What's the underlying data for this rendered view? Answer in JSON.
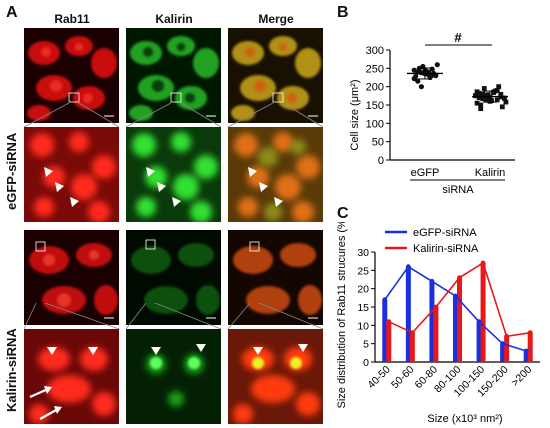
{
  "panel_a": {
    "letter": "A",
    "columns": [
      "Rab11",
      "Kalirin",
      "Merge"
    ],
    "rows": [
      "eGFP-siRNA",
      "Kalirin-siRNA"
    ],
    "colors": {
      "red": "#e01010",
      "green": "#20c020",
      "merge": "#c0a020"
    }
  },
  "panel_b": {
    "letter": "B",
    "significance": "#"
  },
  "panel_c": {
    "letter": "C"
  },
  "chart_data": [
    {
      "type": "scatter",
      "ylabel": "Cell size (μm²)",
      "ylim": [
        0,
        300
      ],
      "yticks": [
        0,
        50,
        100,
        150,
        200,
        250,
        300
      ],
      "categories": [
        "eGFP",
        "Kalirin"
      ],
      "group_label": "siRNA",
      "series": [
        {
          "values": [
            245,
            240,
            238,
            235,
            232,
            248,
            230,
            228,
            250,
            255,
            242,
            225,
            236,
            260,
            222,
            215,
            200,
            244,
            239,
            231
          ]
        },
        {
          "values": [
            175,
            170,
            180,
            165,
            160,
            185,
            190,
            172,
            168,
            155,
            150,
            195,
            178,
            162,
            188,
            200,
            145,
            158,
            176,
            182,
            167,
            173,
            171,
            184,
            164,
            179,
            169,
            186,
            140,
            174
          ]
        }
      ],
      "means": [
        236,
        173
      ]
    },
    {
      "type": "bar",
      "ylabel": "Size distribution of Rab11 strucures (%)",
      "xlabel": "Size (x10³ nm²)",
      "ylim": [
        0,
        30
      ],
      "yticks": [
        0,
        5,
        10,
        15,
        20,
        25,
        30
      ],
      "categories": [
        "40-50",
        "50-60",
        "60-80",
        "80-100",
        "100-150",
        "150-200",
        ">200"
      ],
      "series": [
        {
          "name": "eGFP-siRNA",
          "color": "#1a2fe0",
          "values": [
            17,
            26,
            22,
            18,
            11,
            5,
            3
          ]
        },
        {
          "name": "Kalirin-siRNA",
          "color": "#e81818",
          "values": [
            11,
            8,
            15,
            23,
            27,
            7,
            8
          ]
        }
      ]
    }
  ]
}
